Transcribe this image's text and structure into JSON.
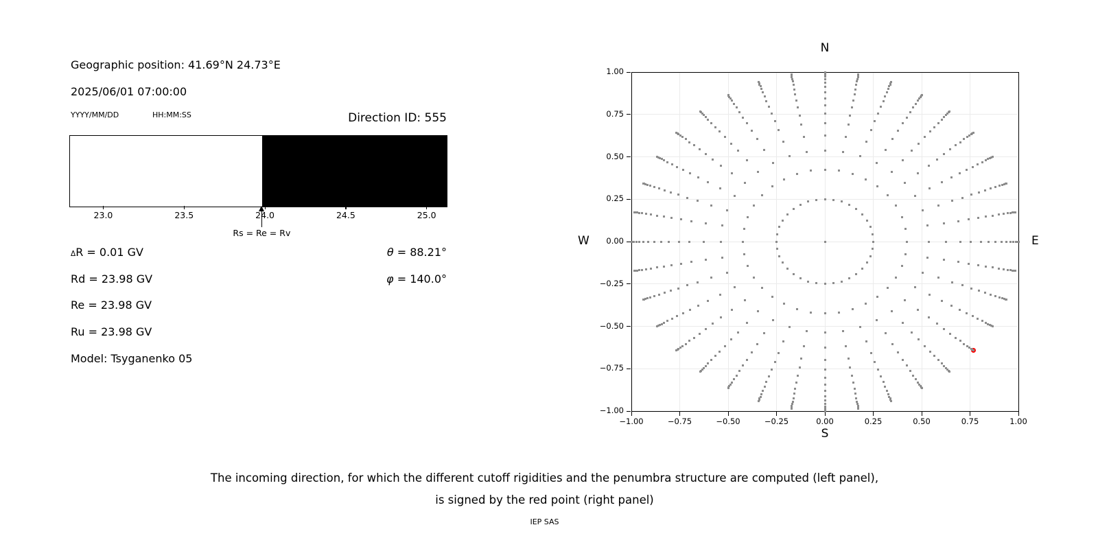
{
  "left_panel": {
    "geo_position": "Geographic position: 41.69°N 24.73°E",
    "datetime": "2025/06/01 07:00:00",
    "date_format_hint": "YYYY/MM/DD",
    "time_format_hint": "HH:MM:SS",
    "direction_id": "Direction ID: 555",
    "values": {
      "delta_symbol": "Δ",
      "delta_r": "R = 0.01 GV",
      "rd": "Rd = 23.98 GV",
      "re": "Re = 23.98 GV",
      "ru": "Ru = 23.98 GV",
      "model": "Model: Tsyganenko 05"
    },
    "angles": {
      "theta_symbol": "θ",
      "theta_value": " = 88.21°",
      "phi_symbol": "φ",
      "phi_value": " = 140.0°"
    }
  },
  "caption": {
    "line1": "The incoming direction, for which the different cutoff rigidities and the penumbra structure are computed (left panel),",
    "line2": "is signed by the red point (right panel)",
    "credit": "IEP SAS"
  },
  "chart_data": [
    {
      "type": "bar",
      "title": "penumbra structure strip",
      "xlim": [
        22.79,
        25.12
      ],
      "x_ticks": [
        23.0,
        23.5,
        24.0,
        24.5,
        25.0
      ],
      "boundary": 23.98,
      "regions": [
        {
          "from": 22.79,
          "to": 23.98,
          "color": "#ffffff",
          "meaning": "allowed rigidities"
        },
        {
          "from": 23.98,
          "to": 25.12,
          "color": "#000000",
          "meaning": "forbidden rigidities"
        }
      ],
      "annotation": {
        "x": 23.98,
        "text": "Rs = Re = Rv"
      },
      "grid": false
    },
    {
      "type": "scatter",
      "title": "incoming direction map",
      "xlim": [
        -1.0,
        1.0
      ],
      "ylim": [
        -1.0,
        1.0
      ],
      "x_ticks": [
        -1.0,
        -0.75,
        -0.5,
        -0.25,
        0.0,
        0.25,
        0.5,
        0.75,
        1.0
      ],
      "y_ticks": [
        1.0,
        0.75,
        0.5,
        0.25,
        0.0,
        -0.25,
        -0.5,
        -0.75,
        -1.0
      ],
      "grid": true,
      "compass": {
        "top": "N",
        "bottom": "S",
        "left": "W",
        "right": "E"
      },
      "marker": "square",
      "dot_color": "#8c8c8c",
      "grid_color": "#ebebeb",
      "spokes": {
        "count": 36,
        "step_deg": 10,
        "radii": [
          0.25,
          0.424,
          0.537,
          0.625,
          0.699,
          0.755,
          0.805,
          0.846,
          0.882,
          0.912,
          0.939,
          0.959,
          0.974,
          0.986,
          0.995,
          1.0
        ]
      },
      "center_point": {
        "x": 0,
        "y": 0
      },
      "red_point": {
        "x": 0.766,
        "y": -0.64,
        "color": "#ff0000"
      }
    }
  ]
}
